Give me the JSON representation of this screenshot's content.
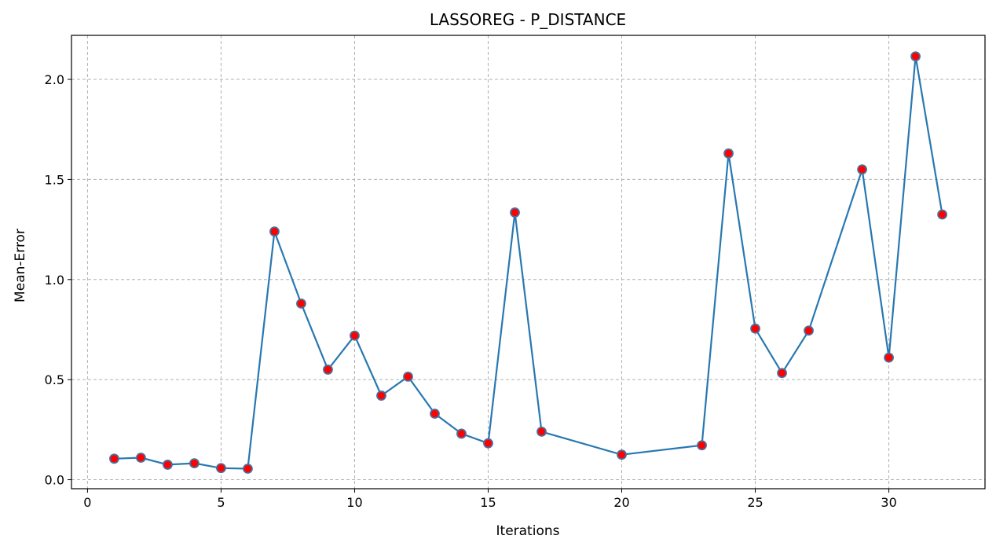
{
  "chart_data": {
    "type": "line",
    "title": "LASSOREG - P_DISTANCE",
    "xlabel": "Iterations",
    "ylabel": "Mean-Error",
    "xlim": [
      -0.6,
      33.6
    ],
    "ylim": [
      -0.045,
      2.22
    ],
    "xticks": [
      0,
      5,
      10,
      15,
      20,
      25,
      30
    ],
    "yticks": [
      0.0,
      0.5,
      1.0,
      1.5,
      2.0
    ],
    "ytick_labels": [
      "0.0",
      "0.5",
      "1.0",
      "1.5",
      "2.0"
    ],
    "grid": true,
    "series": [
      {
        "name": "mean_error",
        "x": [
          1,
          2,
          3,
          4,
          5,
          6,
          7,
          8,
          9,
          10,
          11,
          12,
          13,
          14,
          15,
          16,
          17,
          20,
          23,
          24,
          25,
          26,
          27,
          29,
          30,
          31,
          32
        ],
        "y": [
          0.105,
          0.11,
          0.075,
          0.082,
          0.058,
          0.055,
          1.24,
          0.88,
          0.55,
          0.72,
          0.42,
          0.515,
          0.33,
          0.23,
          0.182,
          1.335,
          0.24,
          0.125,
          0.172,
          1.63,
          0.755,
          0.533,
          0.745,
          1.55,
          0.61,
          2.115,
          1.325
        ],
        "line_color": "#2878b0",
        "marker_face": "#ff0000",
        "marker_edge": "#4a6f9c"
      }
    ]
  }
}
